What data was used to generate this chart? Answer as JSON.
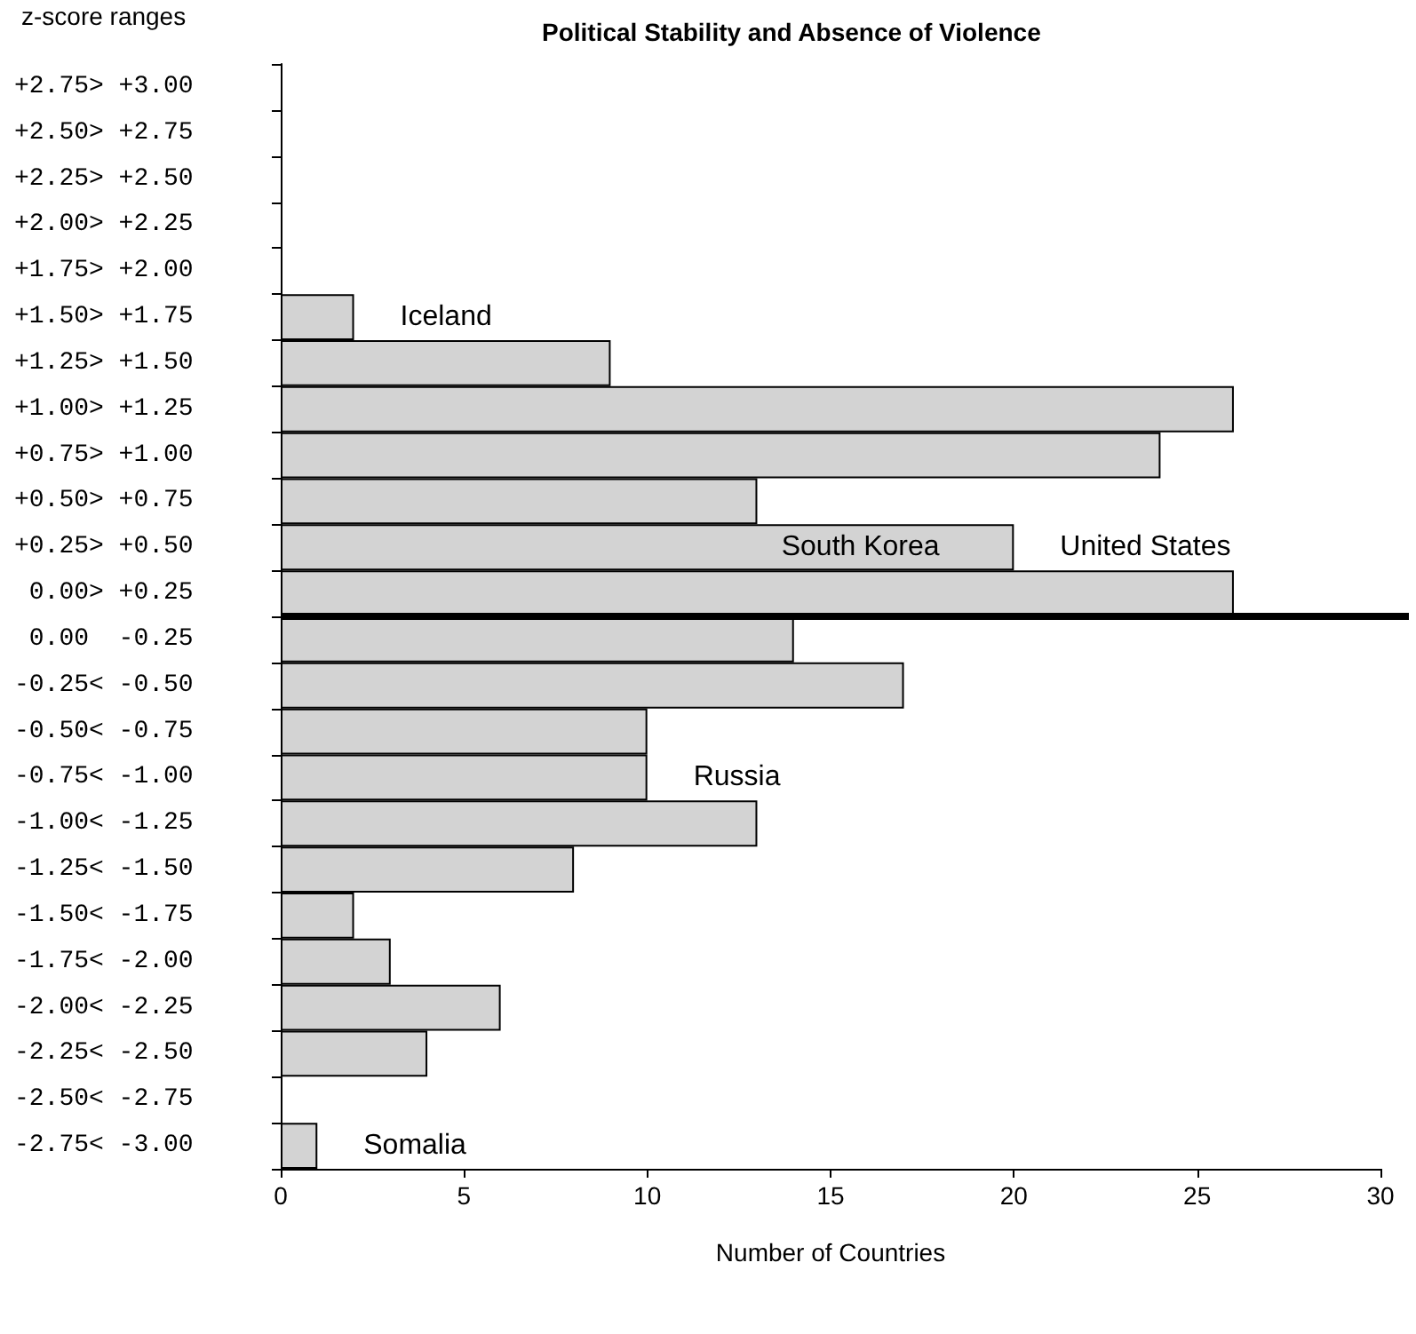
{
  "chart_data": {
    "type": "bar",
    "orientation": "horizontal",
    "title": "Political Stability and Absence of Violence",
    "xlabel": "Number of Countries",
    "ylabel": "z-score ranges",
    "categories": [
      "+2.75> +3.00",
      "+2.50> +2.75",
      "+2.25> +2.50",
      "+2.00> +2.25",
      "+1.75> +2.00",
      "+1.50> +1.75",
      "+1.25> +1.50",
      "+1.00> +1.25",
      "+0.75> +1.00",
      "+0.50> +0.75",
      "+0.25> +0.50",
      " 0.00> +0.25",
      " 0.00  -0.25",
      "-0.25< -0.50",
      "-0.50< -0.75",
      "-0.75< -1.00",
      "-1.00< -1.25",
      "-1.25< -1.50",
      "-1.50< -1.75",
      "-1.75< -2.00",
      "-2.00< -2.25",
      "-2.25< -2.50",
      "-2.50< -2.75",
      "-2.75< -3.00"
    ],
    "values": [
      0,
      0,
      0,
      0,
      0,
      2,
      9,
      26,
      24,
      13,
      20,
      26,
      14,
      17,
      10,
      10,
      13,
      8,
      2,
      3,
      6,
      4,
      0,
      1
    ],
    "color": "#d3d3d3",
    "xlim": [
      0,
      30
    ],
    "xticks": [
      0,
      5,
      10,
      15,
      20,
      25,
      30
    ],
    "ref_lines": [
      {
        "axis": "y",
        "value": " 0.00> +0.25",
        "color": "#000000"
      }
    ],
    "annotations": [
      {
        "text": "Iceland",
        "x": 2,
        "y": "+1.50> +1.75"
      },
      {
        "text": "South Korea",
        "x": 12.4,
        "y": "+0.25> +0.50"
      },
      {
        "text": "United States",
        "x": 20,
        "y": "+0.25> +0.50"
      },
      {
        "text": "Russia",
        "x": 10,
        "y": "-0.75< -1.00"
      },
      {
        "text": "Somalia",
        "x": 1,
        "y": "-2.75< -3.00"
      }
    ]
  }
}
